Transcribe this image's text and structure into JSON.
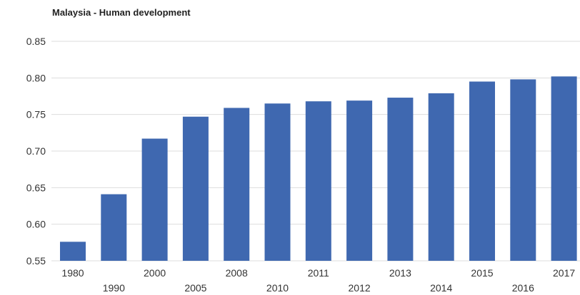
{
  "chart_data": {
    "type": "bar",
    "title": "Malaysia - Human development",
    "categories": [
      "1980",
      "1990",
      "2000",
      "2005",
      "2008",
      "2010",
      "2011",
      "2012",
      "2013",
      "2014",
      "2015",
      "2016",
      "2017"
    ],
    "values": [
      0.576,
      0.641,
      0.717,
      0.747,
      0.759,
      0.765,
      0.768,
      0.769,
      0.773,
      0.779,
      0.795,
      0.798,
      0.802
    ],
    "ylim": [
      0.55,
      0.85
    ],
    "yticks": [
      "0.85",
      "0.80",
      "0.75",
      "0.70",
      "0.65",
      "0.60",
      "0.55"
    ],
    "xlabel": "",
    "ylabel": "",
    "grid": true,
    "legend": "none",
    "bar_color": "#3f68b0",
    "grid_color": "#dddddd"
  }
}
